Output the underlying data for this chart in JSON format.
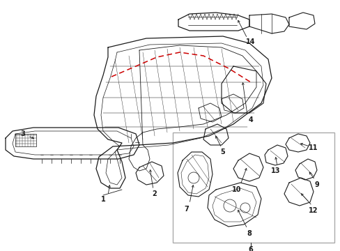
{
  "bg_color": "#ffffff",
  "lc": "#1a1a1a",
  "rc": "#cc0000",
  "gc": "#aaaaaa",
  "figsize": [
    4.89,
    3.6
  ],
  "dpi": 100,
  "fs": 7
}
